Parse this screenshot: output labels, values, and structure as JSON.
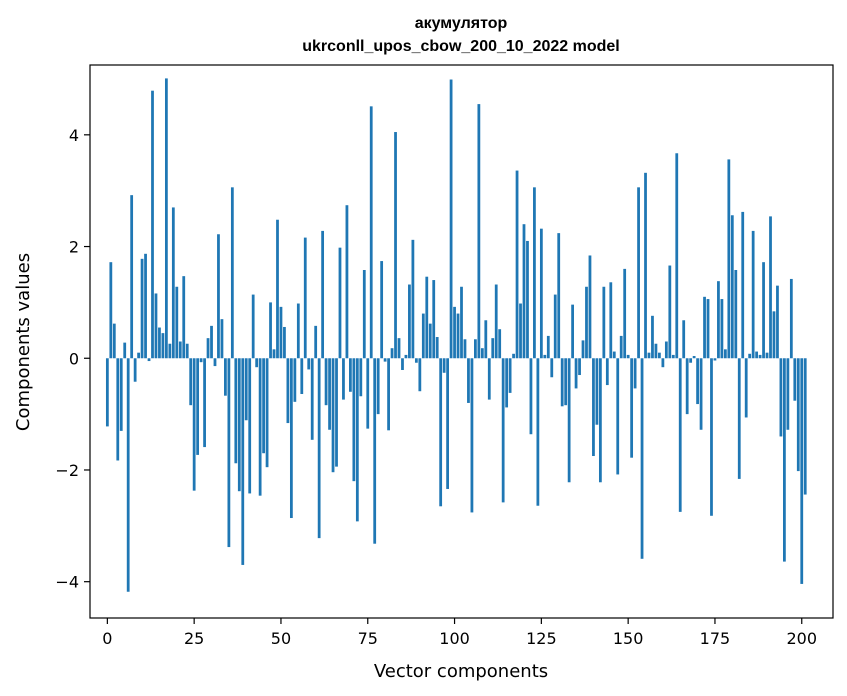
{
  "chart_data": {
    "type": "bar",
    "title_lines": [
      "акумулятор",
      "ukrconll_upos_cbow_200_10_2022 model"
    ],
    "xlabel": "Vector components",
    "ylabel": "Components values",
    "xlim": [
      -5,
      209
    ],
    "ylim": [
      -4.65,
      5.25
    ],
    "xticks": [
      0,
      25,
      50,
      75,
      100,
      125,
      150,
      175,
      200
    ],
    "xtick_labels": [
      "0",
      "25",
      "50",
      "75",
      "100",
      "125",
      "150",
      "175",
      "200"
    ],
    "yticks": [
      -4,
      -2,
      0,
      2,
      4
    ],
    "ytick_labels": [
      "−4",
      "−2",
      "0",
      "2",
      "4"
    ],
    "bar_color": "#1f77b4",
    "grid": false,
    "values": [
      -1.22,
      1.72,
      0.62,
      -1.83,
      -1.3,
      0.28,
      -4.18,
      2.92,
      -0.42,
      0.1,
      1.78,
      1.87,
      -0.05,
      4.79,
      1.16,
      0.55,
      0.45,
      5.01,
      0.26,
      2.7,
      1.28,
      0.3,
      1.47,
      0.26,
      -0.84,
      -2.37,
      -1.73,
      -0.07,
      -1.59,
      0.36,
      0.58,
      -0.14,
      2.22,
      0.7,
      -0.67,
      -3.38,
      3.06,
      -1.88,
      -2.38,
      -3.7,
      -1.11,
      -2.42,
      1.14,
      -0.16,
      -2.46,
      -1.7,
      -1.95,
      1.0,
      0.16,
      2.48,
      0.92,
      0.56,
      -1.16,
      -2.86,
      -0.78,
      0.98,
      -0.64,
      2.16,
      -0.2,
      -1.46,
      0.58,
      -3.22,
      2.28,
      -0.84,
      -1.28,
      -2.04,
      -1.94,
      1.98,
      -0.74,
      2.74,
      -0.6,
      -2.2,
      -2.92,
      -0.68,
      1.58,
      -1.26,
      4.51,
      -3.32,
      -1.0,
      1.74,
      -0.06,
      -1.29,
      0.18,
      4.05,
      0.36,
      -0.21,
      0.06,
      1.32,
      2.12,
      -0.08,
      -0.59,
      0.8,
      1.46,
      0.62,
      1.4,
      0.38,
      -2.65,
      -0.26,
      -2.34,
      4.99,
      0.92,
      0.8,
      1.28,
      0.34,
      -0.8,
      -2.76,
      0.34,
      4.55,
      0.18,
      0.68,
      -0.74,
      0.36,
      1.32,
      0.52,
      -2.58,
      -0.88,
      -0.62,
      0.08,
      3.36,
      0.98,
      2.4,
      2.1,
      -1.36,
      3.06,
      -2.64,
      2.32,
      0.06,
      0.4,
      -0.34,
      1.14,
      2.24,
      -0.86,
      -0.84,
      -2.22,
      0.96,
      -0.54,
      -0.3,
      0.32,
      1.28,
      1.84,
      -1.75,
      -1.19,
      -2.22,
      1.28,
      -0.48,
      1.36,
      0.12,
      -2.08,
      0.4,
      1.6,
      0.06,
      -1.78,
      -0.54,
      3.06,
      -3.59,
      3.32,
      0.1,
      0.76,
      0.26,
      0.1,
      -0.16,
      0.3,
      1.66,
      0.06,
      3.67,
      -2.75,
      0.68,
      -1.0,
      -0.08,
      0.04,
      -0.82,
      -1.28,
      1.1,
      1.06,
      -2.82,
      -0.04,
      1.38,
      1.06,
      0.16,
      3.56,
      2.56,
      1.58,
      -2.16,
      2.62,
      -1.06,
      0.08,
      2.28,
      0.12,
      0.06,
      1.72,
      0.1,
      2.54,
      0.84,
      1.3,
      -1.4,
      -3.64,
      -1.28,
      1.42,
      -0.76,
      -2.02,
      -4.04,
      -2.44
    ]
  }
}
